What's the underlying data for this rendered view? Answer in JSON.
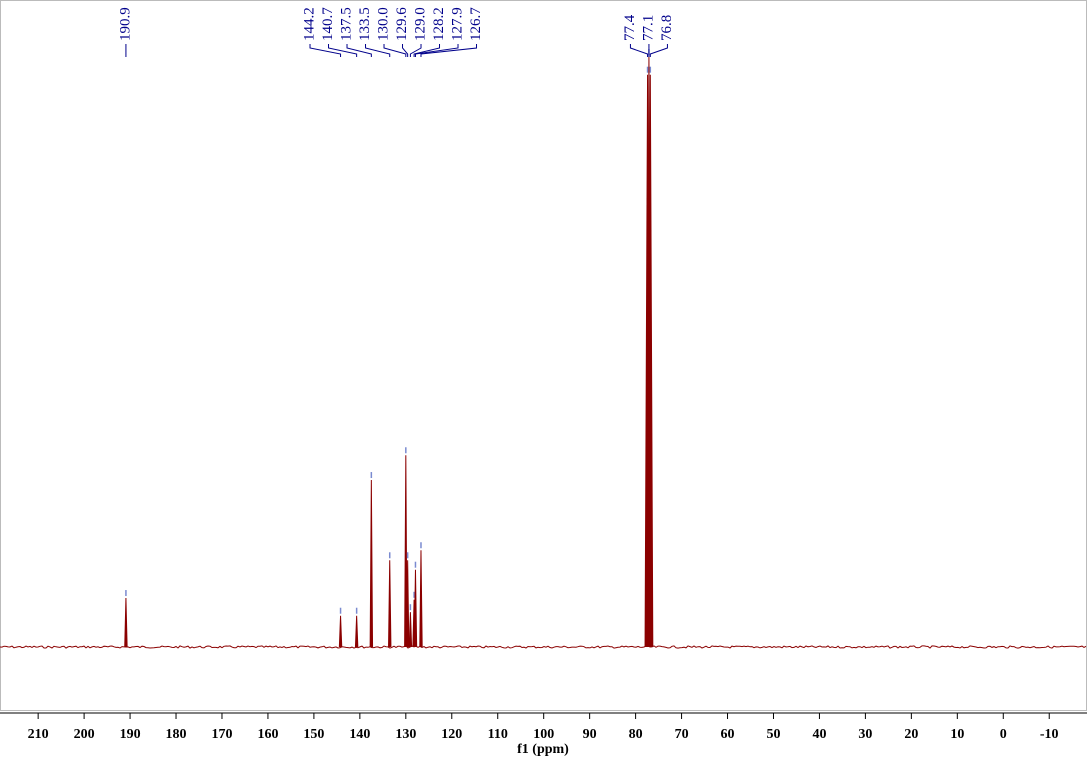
{
  "chart_data": {
    "type": "nmr",
    "x_label": "f1 (ppm)",
    "color": "#8b0000",
    "label_color": "#00008b",
    "xlim": [
      218.3,
      -18
    ],
    "xticks": [
      210,
      200,
      190,
      180,
      170,
      160,
      150,
      140,
      130,
      120,
      110,
      100,
      90,
      80,
      70,
      60,
      50,
      40,
      30,
      20,
      10,
      0,
      -10
    ],
    "ylim": [
      0,
      100
    ],
    "peaks": [
      {
        "ppm": 190.9,
        "intensity": 8.3
      },
      {
        "ppm": 144.2,
        "intensity": 5.3
      },
      {
        "ppm": 140.7,
        "intensity": 5.3
      },
      {
        "ppm": 137.5,
        "intensity": 28.3
      },
      {
        "ppm": 133.5,
        "intensity": 14.7
      },
      {
        "ppm": {
          "value": 130,
          "label": "130.0"
        },
        "intensity": 32.5
      },
      {
        "ppm": 129.6,
        "intensity": 14.7
      },
      {
        "ppm": {
          "value": 129,
          "label": "129.0"
        },
        "intensity": 5.9
      },
      {
        "ppm": 128.2,
        "intensity": 8
      },
      {
        "ppm": 127.9,
        "intensity": 13.1
      },
      {
        "ppm": 126.7,
        "intensity": 16.4
      },
      {
        "ppm": 77.4,
        "intensity": 97
      },
      {
        "ppm": 77.1,
        "intensity": 100
      },
      {
        "ppm": 76.8,
        "intensity": 97
      }
    ]
  }
}
